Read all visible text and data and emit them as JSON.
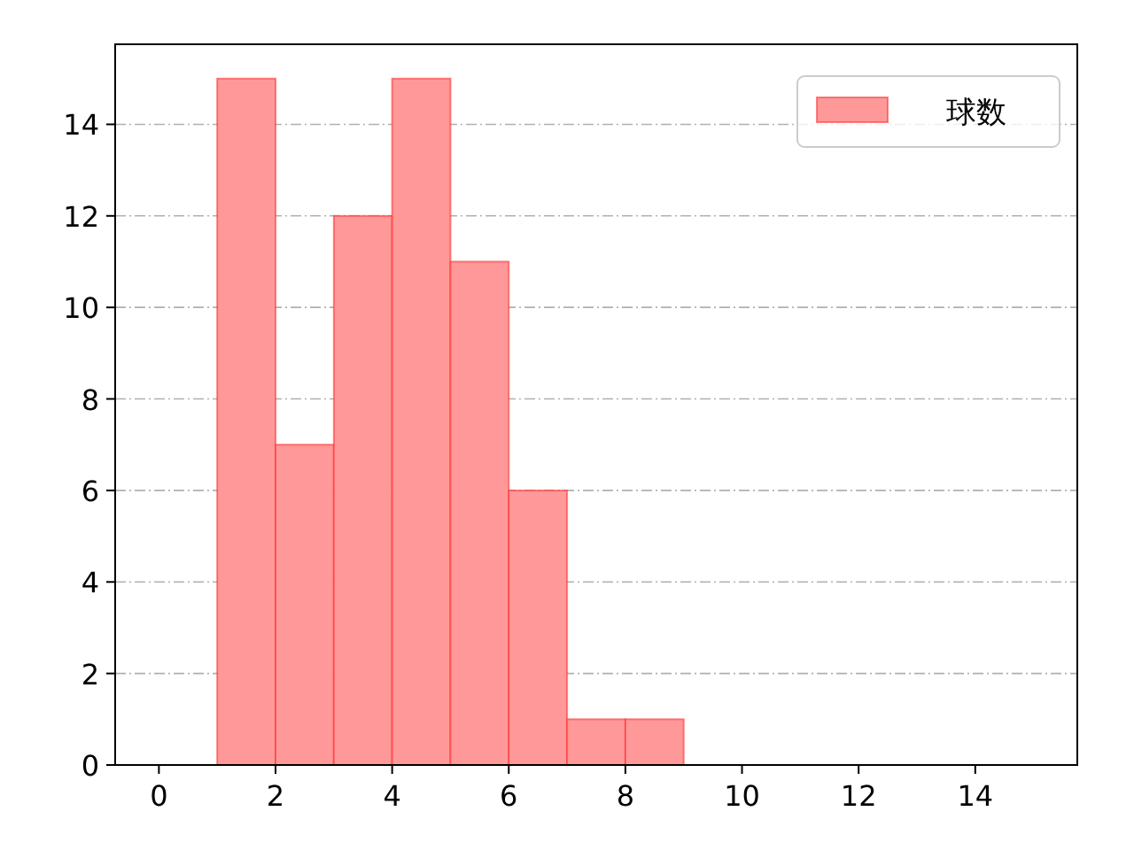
{
  "chart_data": {
    "type": "histogram",
    "bins": [
      1,
      2,
      3,
      4,
      5,
      6,
      7,
      8,
      9
    ],
    "series": [
      {
        "name": "球数",
        "color": "#ff9999",
        "values": [
          15,
          7,
          12,
          15,
          11,
          6,
          1,
          1
        ]
      }
    ],
    "xlim": [
      -0.75,
      15.75
    ],
    "xticks": [
      0,
      2,
      4,
      6,
      8,
      10,
      12,
      14
    ],
    "ylim": [
      0,
      15.75
    ],
    "yticks": [
      0,
      2,
      4,
      6,
      8,
      10,
      12,
      14
    ],
    "grid": "y",
    "legend": "top right"
  }
}
